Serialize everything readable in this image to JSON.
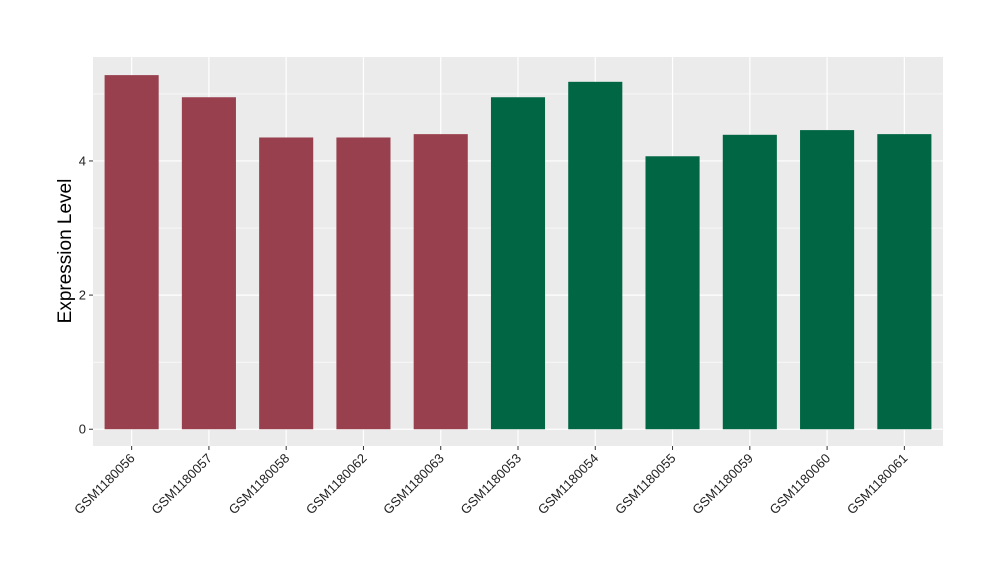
{
  "chart_data": {
    "type": "bar",
    "title": "",
    "xlabel": "",
    "ylabel": "Expression Level",
    "ylim": [
      -0.25,
      5.55
    ],
    "yticks": [
      0,
      2,
      4
    ],
    "grid": true,
    "legend": "none",
    "categories": [
      "GSM1180056",
      "GSM1180057",
      "GSM1180058",
      "GSM1180062",
      "GSM1180063",
      "GSM1180053",
      "GSM1180054",
      "GSM1180055",
      "GSM1180059",
      "GSM1180060",
      "GSM1180061"
    ],
    "values": [
      5.28,
      4.95,
      4.35,
      4.35,
      4.4,
      4.95,
      5.18,
      4.07,
      4.39,
      4.46,
      4.4
    ],
    "bar_colors": [
      "#99404f",
      "#99404f",
      "#99404f",
      "#99404f",
      "#99404f",
      "#006643",
      "#006643",
      "#006643",
      "#006643",
      "#006643",
      "#006643"
    ],
    "panel_background": "#ebebeb",
    "gridline_color": "#ffffff"
  }
}
